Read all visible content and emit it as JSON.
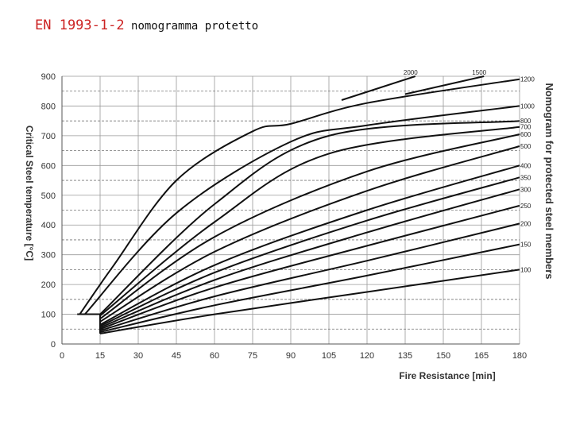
{
  "slide": {
    "title_accent": "EN 1993-1-2",
    "title_rest": " nomogramma protetto"
  },
  "chart_data": {
    "type": "line",
    "title": "Nomogram for protected steel members",
    "xlabel": "Fire Resistance [min]",
    "ylabel": "Critical Steel temperature [°C]",
    "xlim": [
      0,
      180
    ],
    "ylim": [
      0,
      900
    ],
    "x_ticks": [
      "0",
      "15",
      "30",
      "45",
      "60",
      "75",
      "90",
      "105",
      "120",
      "135",
      "150",
      "165",
      "180"
    ],
    "y_ticks": [
      "0",
      "100",
      "200",
      "300",
      "400",
      "500",
      "600",
      "700",
      "800",
      "900"
    ],
    "grid": true,
    "series": [
      {
        "name": "100",
        "points": [
          [
            15,
            35
          ],
          [
            60,
            100
          ],
          [
            120,
            175
          ],
          [
            180,
            250
          ]
        ]
      },
      {
        "name": "150",
        "points": [
          [
            15,
            40
          ],
          [
            60,
            130
          ],
          [
            120,
            230
          ],
          [
            180,
            335
          ]
        ]
      },
      {
        "name": "200",
        "points": [
          [
            15,
            45
          ],
          [
            60,
            160
          ],
          [
            120,
            280
          ],
          [
            180,
            405
          ]
        ]
      },
      {
        "name": "250",
        "points": [
          [
            15,
            50
          ],
          [
            60,
            190
          ],
          [
            120,
            330
          ],
          [
            180,
            465
          ]
        ]
      },
      {
        "name": "300",
        "points": [
          [
            15,
            55
          ],
          [
            60,
            215
          ],
          [
            120,
            375
          ],
          [
            180,
            520
          ]
        ]
      },
      {
        "name": "350",
        "points": [
          [
            15,
            60
          ],
          [
            60,
            240
          ],
          [
            120,
            415
          ],
          [
            180,
            560
          ]
        ]
      },
      {
        "name": "400",
        "points": [
          [
            15,
            65
          ],
          [
            60,
            265
          ],
          [
            120,
            450
          ],
          [
            180,
            600
          ]
        ]
      },
      {
        "name": "500",
        "points": [
          [
            15,
            75
          ],
          [
            60,
            310
          ],
          [
            120,
            515
          ],
          [
            180,
            665
          ]
        ]
      },
      {
        "name": "600",
        "points": [
          [
            15,
            85
          ],
          [
            60,
            360
          ],
          [
            120,
            580
          ],
          [
            180,
            705
          ]
        ]
      },
      {
        "name": "700",
        "points": [
          [
            15,
            95
          ],
          [
            60,
            410
          ],
          [
            105,
            640
          ],
          [
            180,
            730
          ]
        ]
      },
      {
        "name": "800",
        "points": [
          [
            15,
            100
          ],
          [
            60,
            470
          ],
          [
            105,
            700
          ],
          [
            180,
            750
          ]
        ]
      },
      {
        "name": "1000",
        "points": [
          [
            9,
            100
          ],
          [
            45,
            440
          ],
          [
            90,
            680
          ],
          [
            120,
            735
          ],
          [
            180,
            800
          ]
        ]
      },
      {
        "name": "1200",
        "points": [
          [
            7,
            100
          ],
          [
            20,
            260
          ],
          [
            45,
            550
          ],
          [
            75,
            715
          ],
          [
            90,
            740
          ],
          [
            120,
            810
          ],
          [
            180,
            890
          ]
        ]
      },
      {
        "name": "1500",
        "points": [
          [
            135,
            840
          ],
          [
            166,
            900
          ]
        ]
      },
      {
        "name": "2000",
        "points": [
          [
            110,
            820
          ],
          [
            139,
            900
          ]
        ]
      }
    ]
  }
}
